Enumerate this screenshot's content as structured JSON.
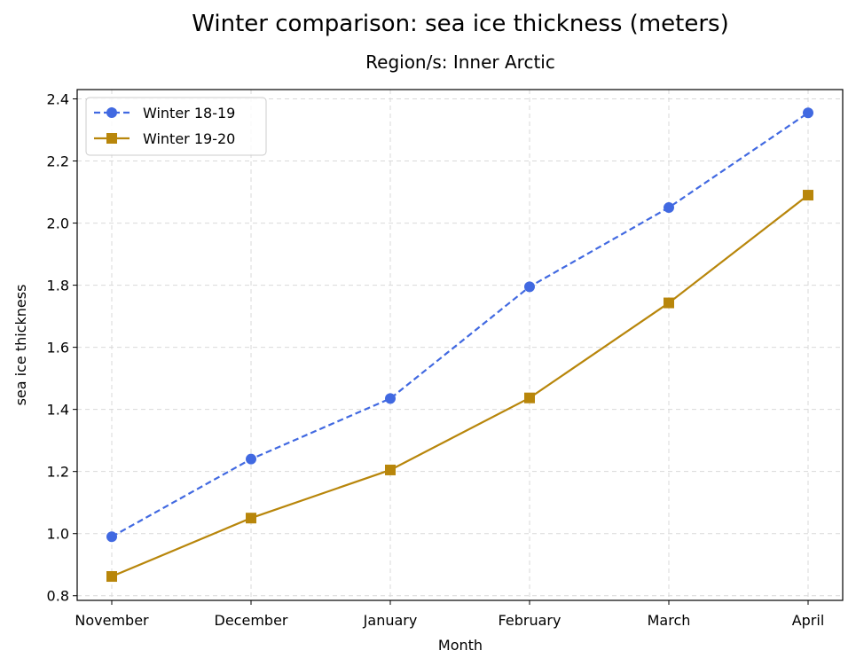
{
  "chart_data": {
    "type": "line",
    "title": "Winter comparison: sea ice thickness (meters)",
    "subtitle": "Region/s: Inner Arctic",
    "xlabel": "Month",
    "ylabel": "sea ice thickness",
    "categories": [
      "November",
      "December",
      "January",
      "February",
      "March",
      "April"
    ],
    "yticks": [
      "0.8",
      "1.0",
      "1.2",
      "1.4",
      "1.6",
      "1.8",
      "2.0",
      "2.2",
      "2.4"
    ],
    "ylim": [
      0.785,
      2.43
    ],
    "grid": true,
    "legend_position": "top-left",
    "series": [
      {
        "name": "Winter 18-19",
        "values": [
          0.99,
          1.24,
          1.435,
          1.795,
          2.05,
          2.355
        ],
        "color": "#4169e1",
        "line_style": "dashed",
        "marker": "circle"
      },
      {
        "name": "Winter 19-20",
        "values": [
          0.862,
          1.05,
          1.205,
          1.437,
          1.743,
          2.09
        ],
        "color": "#b8860b",
        "line_style": "solid",
        "marker": "square"
      }
    ]
  }
}
